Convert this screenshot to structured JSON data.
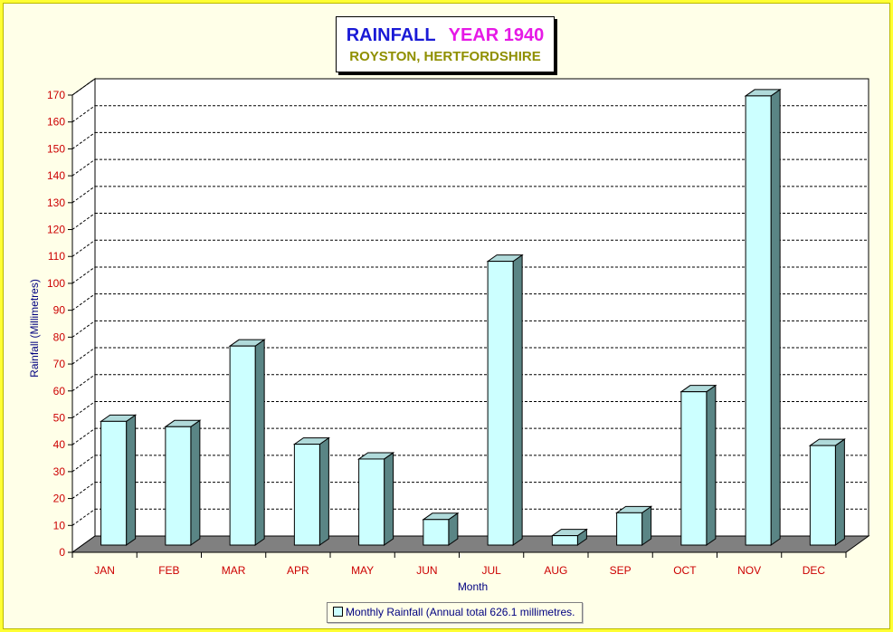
{
  "title": {
    "main": "RAINFALL",
    "year": "YEAR 1940",
    "location": "ROYSTON, HERTFORDSHIRE"
  },
  "legend": {
    "label": "Monthly Rainfall (Annual total 626.1 millimetres."
  },
  "colors": {
    "bar_face": "#ccffff",
    "bar_side": "#5a8585",
    "bar_top": "#b0dada",
    "floor": "#808080",
    "tick_label": "#cc0000",
    "axis_title": "#000080"
  },
  "chart_data": {
    "type": "bar",
    "title": "RAINFALL YEAR 1940",
    "subtitle": "ROYSTON, HERTFORDSHIRE",
    "xlabel": "Month",
    "ylabel": "Rainfall  (Millimetres)",
    "ylim": [
      0,
      170
    ],
    "ytick_step": 10,
    "grid": true,
    "legend_position": "bottom",
    "categories": [
      "JAN",
      "FEB",
      "MAR",
      "APR",
      "MAY",
      "JUN",
      "JUL",
      "AUG",
      "SEP",
      "OCT",
      "NOV",
      "DEC"
    ],
    "series": [
      {
        "name": "Monthly Rainfall (Annual total 626.1 millimetres.",
        "values": [
          46.0,
          44.0,
          74.0,
          37.5,
          32.0,
          9.5,
          105.5,
          3.5,
          12.0,
          57.0,
          167.0,
          37.0
        ]
      }
    ]
  }
}
